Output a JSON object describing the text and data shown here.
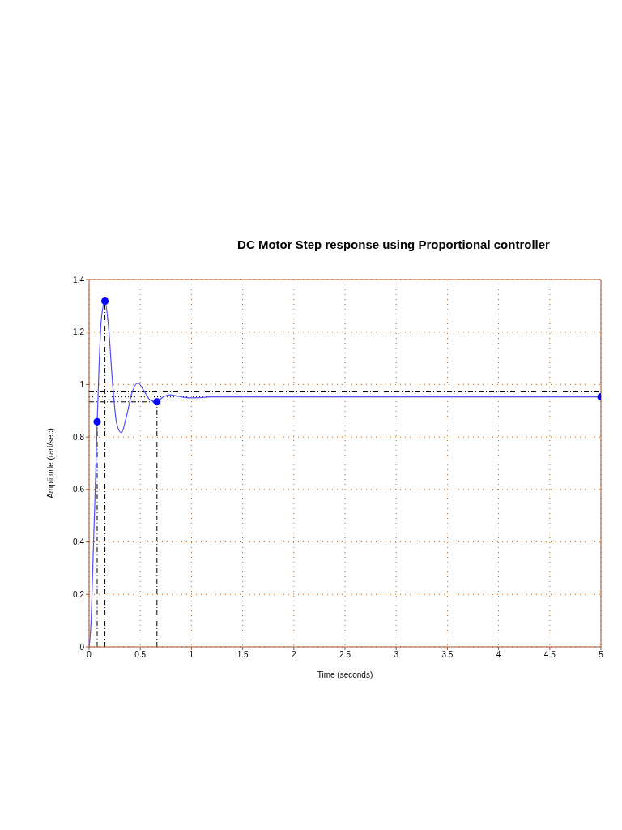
{
  "chart_data": {
    "type": "line",
    "title": "DC Motor Step response using Proportional controller",
    "xlabel": "Time (seconds)",
    "ylabel": "Amplitude (rad/sec)",
    "series": [
      {
        "color": "#4f4fff",
        "x": [
          0,
          0.02,
          0.04,
          0.06,
          0.079,
          0.1,
          0.12,
          0.155,
          0.19,
          0.23,
          0.27,
          0.316,
          0.36,
          0.42,
          0.477,
          0.53,
          0.6,
          0.663,
          0.72,
          0.786,
          0.87,
          1.0,
          1.2,
          1.5,
          2,
          3,
          4,
          5
        ],
        "values": [
          0,
          0.1,
          0.35,
          0.6,
          0.858,
          1.1,
          1.25,
          1.318,
          1.22,
          1.0,
          0.85,
          0.816,
          0.87,
          0.97,
          1.006,
          0.98,
          0.94,
          0.934,
          0.952,
          0.961,
          0.955,
          0.949,
          0.953,
          0.953,
          0.953,
          0.953,
          0.953,
          0.953
        ]
      },
      {
        "type": "scatter",
        "marker": "circle",
        "color": "#0000ff",
        "x": [
          0.079,
          0.155,
          0.663,
          5
        ],
        "values": [
          0.858,
          1.318,
          0.934,
          0.953
        ]
      }
    ],
    "ref_lines": [
      {
        "axis": "y",
        "value": 0.972,
        "color": "#000000",
        "line_style": "dashed"
      },
      {
        "axis": "y",
        "value": 0.934,
        "color": "#000000",
        "line_style": "dashed"
      },
      {
        "axis": "y",
        "value": 0.953,
        "color": "#000000",
        "line_style": "dotted"
      },
      {
        "axis": "x",
        "value": 0.079,
        "color": "#000000",
        "line_style": "dashed"
      },
      {
        "axis": "x",
        "value": 0.155,
        "color": "#000000",
        "line_style": "dashed"
      },
      {
        "axis": "x",
        "value": 0.663,
        "color": "#000000",
        "line_style": "dashed"
      }
    ],
    "xlim": [
      0,
      5
    ],
    "xticks": [
      0,
      0.5,
      1,
      1.5,
      2,
      2.5,
      3,
      3.5,
      4,
      4.5,
      5
    ],
    "ylim": [
      0,
      1.4
    ],
    "yticks": [
      0,
      0.2,
      0.4,
      0.6,
      0.8,
      1,
      1.2,
      1.4
    ],
    "grid": true,
    "legend": false
  }
}
